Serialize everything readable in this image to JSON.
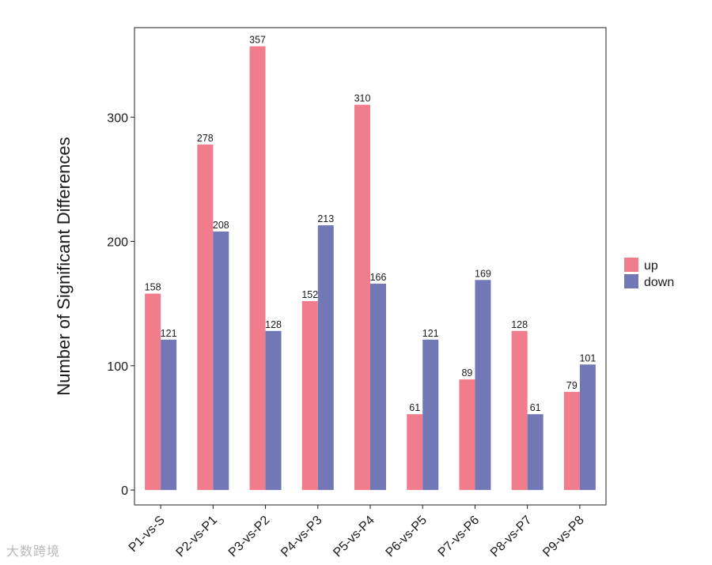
{
  "chart_data": {
    "type": "bar",
    "title": "",
    "xlabel": "",
    "ylabel": "Number of Significant Differences",
    "ylim": [
      -12,
      372
    ],
    "yticks": [
      0,
      100,
      200,
      300
    ],
    "categories": [
      "P1-vs-S",
      "P2-vs-P1",
      "P3-vs-P2",
      "P4-vs-P3",
      "P5-vs-P4",
      "P6-vs-P5",
      "P7-vs-P6",
      "P8-vs-P7",
      "P9-vs-P8"
    ],
    "series": [
      {
        "name": "up",
        "color": "#F07C8C",
        "values": [
          158,
          278,
          357,
          152,
          310,
          61,
          89,
          128,
          79
        ]
      },
      {
        "name": "down",
        "color": "#7278B5",
        "values": [
          121,
          208,
          128,
          213,
          166,
          121,
          169,
          61,
          101
        ]
      }
    ],
    "legend_position": "right"
  },
  "watermark": "大数跨境"
}
